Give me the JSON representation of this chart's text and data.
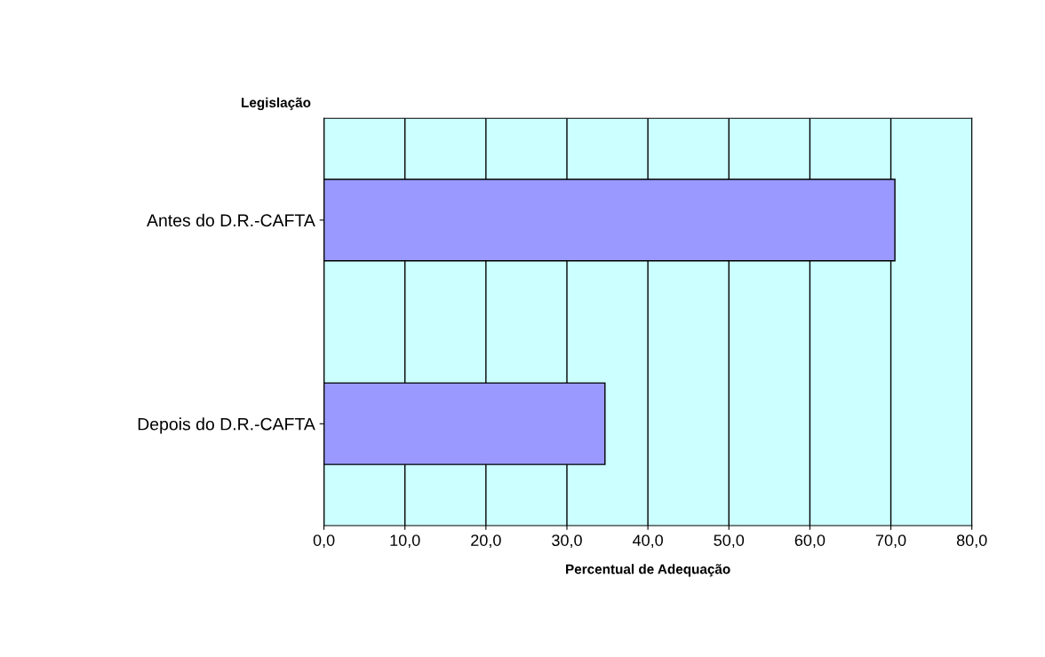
{
  "chart_data": {
    "type": "bar",
    "orientation": "horizontal",
    "categories": [
      "Antes do D.R.-CAFTA",
      "Depois do D.R.-CAFTA"
    ],
    "values": [
      70.5,
      34.7
    ],
    "color": "#9999ff",
    "ylabel": "Legislação",
    "xlabel": "Percentual de Adequação",
    "xlim": [
      0,
      80
    ],
    "xticks": [
      {
        "value": 0,
        "label": "0,0"
      },
      {
        "value": 10,
        "label": "10,0"
      },
      {
        "value": 20,
        "label": "20,0"
      },
      {
        "value": 30,
        "label": "30,0"
      },
      {
        "value": 40,
        "label": "40,0"
      },
      {
        "value": 50,
        "label": "50,0"
      },
      {
        "value": 60,
        "label": "60,0"
      },
      {
        "value": 70,
        "label": "70,0"
      },
      {
        "value": 80,
        "label": "80,0"
      }
    ],
    "grid": "x"
  }
}
